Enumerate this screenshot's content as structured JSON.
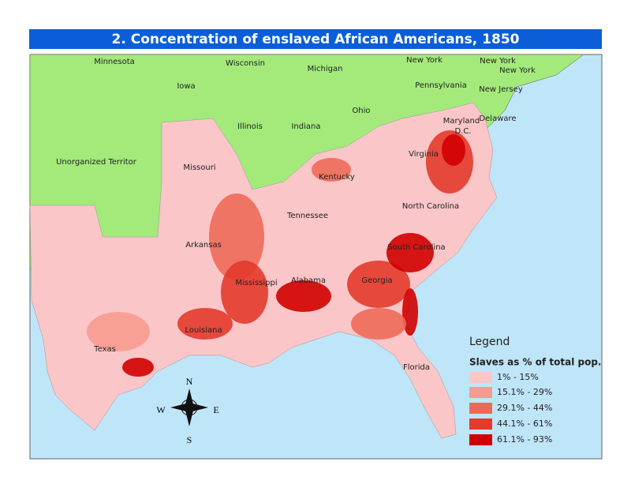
{
  "title": "2.  Concentration of enslaved African Americans, 1850",
  "labels": [
    "Minnesota",
    "Wisconsin",
    "Michigan",
    "New York",
    "New York",
    "New York",
    "Iowa",
    "Pennsylvania",
    "New Jersey",
    "Ohio",
    "Illinois",
    "Indiana",
    "Maryland",
    "D.C.",
    "Delaware",
    "Unorganized Territor",
    "Missouri",
    "Virginia",
    "Kentucky",
    "Tennessee",
    "North Carolina",
    "Arkansas",
    "South Carolina",
    "Mississippi",
    "Alabama",
    "Georgia",
    "Louisiana",
    "Texas",
    "Florida"
  ],
  "legend": {
    "title": "Legend",
    "subtitle": "Slaves as % of total pop.",
    "items": [
      {
        "label": "1% - 15%",
        "color": "#fbc6c8"
      },
      {
        "label": "15.1% - 29%",
        "color": "#f79a90"
      },
      {
        "label": "29.1% - 44%",
        "color": "#ee6a58"
      },
      {
        "label": "44.1% - 61%",
        "color": "#e33a2c"
      },
      {
        "label": "61.1% - 93%",
        "color": "#d10000"
      }
    ]
  },
  "compass": {
    "n": "N",
    "s": "S",
    "e": "E",
    "w": "W"
  }
}
